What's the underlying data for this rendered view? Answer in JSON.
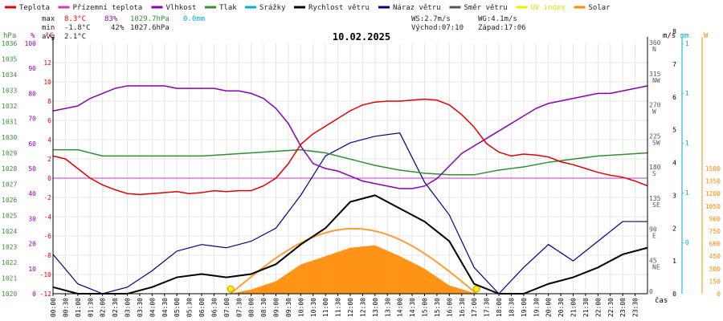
{
  "chart_data": {
    "type": "line",
    "title": "10.02.2025",
    "legend": [
      {
        "label": "Teplota",
        "color": "#e00000"
      },
      {
        "label": "Přízemní teplota",
        "color": "#cc33cc"
      },
      {
        "label": "Vlhkost",
        "color": "#8b00b4"
      },
      {
        "label": "Tlak",
        "color": "#2f8f2f"
      },
      {
        "label": "Srážky",
        "color": "#00aacc"
      },
      {
        "label": "Rychlost větru",
        "color": "#000000"
      },
      {
        "label": "Náraz větru",
        "color": "#000088"
      },
      {
        "label": "Směr větru",
        "color": "#555555"
      },
      {
        "label": "UV index",
        "color": "#eeee00"
      },
      {
        "label": "Solar",
        "color": "#ff8800"
      }
    ],
    "stats": {
      "max": {
        "label": "max",
        "temp": "8.3°C",
        "hum": "83%",
        "press": "1029.7hPa",
        "rain": "0.0mm"
      },
      "min": {
        "label": "min",
        "temp": "-1.8°C",
        "hum": "42%",
        "press": "1027.6hPa"
      },
      "avg": {
        "label": "avg",
        "temp": "2.1°C"
      }
    },
    "wind_info": {
      "ws": "WS:2.7m/s",
      "wg": "WG:4.1m/s",
      "sunrise": "Východ:07:10",
      "sunset": "Západ:17:06"
    },
    "axes": {
      "hpa": {
        "unit": "hPa",
        "range": [
          1020,
          1036
        ],
        "ticks": [
          "1036",
          "1035",
          "1034",
          "1033",
          "1032",
          "1031",
          "1030",
          "1029",
          "1028",
          "1027",
          "1026",
          "1025",
          "1024",
          "1023",
          "1022",
          "1021",
          "1020"
        ]
      },
      "pct": {
        "unit": "%",
        "range": [
          0,
          100
        ],
        "ticks": [
          "100",
          "90",
          "80",
          "70",
          "60",
          "50",
          "40",
          "30",
          "20",
          "10",
          "0"
        ]
      },
      "temp": {
        "unit": "°C",
        "range": [
          -12,
          14
        ],
        "ticks": [
          "12",
          "10",
          "8",
          "6",
          "4",
          "2",
          "0",
          "-2",
          "-4",
          "-6",
          "-8",
          "-10",
          "-12"
        ]
      },
      "dir": {
        "ticks": [
          {
            "deg": "360",
            "name": "N"
          },
          {
            "deg": "315",
            "name": "NW"
          },
          {
            "deg": "270",
            "name": "W"
          },
          {
            "deg": "225",
            "name": "SW"
          },
          {
            "deg": "180",
            "name": "S"
          },
          {
            "deg": "135",
            "name": "SE"
          },
          {
            "deg": "90",
            "name": "E"
          },
          {
            "deg": "45",
            "name": "NE"
          },
          {
            "deg": "0",
            "name": ""
          }
        ]
      },
      "ms": {
        "unit": "m/s",
        "ticks": [
          "8",
          "7",
          "6",
          "5",
          "4",
          "3",
          "2",
          "1",
          "0"
        ]
      },
      "mm": {
        "unit": "mm",
        "ticks": [
          "-1",
          "-1",
          "-1",
          "-1",
          "-0"
        ]
      },
      "w": {
        "unit": "W",
        "ticks": [
          "1500",
          "1350",
          "1200",
          "1050",
          "900",
          "750",
          "600",
          "450",
          "300",
          "150",
          "0"
        ]
      },
      "x_label": "čas",
      "x_ticks": [
        "00:00",
        "00:30",
        "01:00",
        "01:30",
        "02:00",
        "02:30",
        "03:00",
        "03:30",
        "04:00",
        "04:30",
        "05:00",
        "05:30",
        "06:00",
        "06:30",
        "07:00",
        "07:30",
        "08:00",
        "08:30",
        "09:00",
        "09:30",
        "10:00",
        "10:30",
        "11:00",
        "11:30",
        "12:00",
        "12:30",
        "13:00",
        "13:30",
        "14:00",
        "14:30",
        "15:00",
        "15:30",
        "16:00",
        "16:30",
        "17:00",
        "17:30",
        "18:00",
        "18:30",
        "19:00",
        "19:30",
        "20:00",
        "20:30",
        "21:00",
        "21:30",
        "22:00",
        "22:30",
        "23:00",
        "23:30"
      ]
    },
    "series": [
      {
        "name": "Teplota",
        "unit": "°C",
        "color": "#e00000",
        "x": [
          0,
          0.5,
          1,
          1.5,
          2,
          2.5,
          3,
          3.5,
          4,
          4.5,
          5,
          5.5,
          6,
          6.5,
          7,
          7.5,
          8,
          8.5,
          9,
          9.5,
          10,
          10.5,
          11,
          11.5,
          12,
          12.5,
          13,
          13.5,
          14,
          14.5,
          15,
          15.5,
          16,
          16.5,
          17,
          17.5,
          18,
          18.5,
          19,
          19.5,
          20,
          20.5,
          21,
          21.5,
          22,
          22.5,
          23,
          23.5,
          24
        ],
        "values": [
          2.3,
          2.0,
          1.0,
          0.0,
          -0.7,
          -1.2,
          -1.6,
          -1.7,
          -1.6,
          -1.5,
          -1.4,
          -1.6,
          -1.5,
          -1.3,
          -1.4,
          -1.3,
          -1.3,
          -0.8,
          0.0,
          1.5,
          3.5,
          4.6,
          5.4,
          6.2,
          7.0,
          7.6,
          7.9,
          8.0,
          8.0,
          8.1,
          8.2,
          8.1,
          7.6,
          6.6,
          5.3,
          3.6,
          2.7,
          2.3,
          2.5,
          2.4,
          2.2,
          1.7,
          1.4,
          1.0,
          0.6,
          0.3,
          0.1,
          -0.3,
          -0.8
        ]
      },
      {
        "name": "Vlhkost",
        "unit": "%",
        "color": "#8b00b4",
        "x": [
          0,
          0.5,
          1,
          1.5,
          2,
          2.5,
          3,
          3.5,
          4,
          4.5,
          5,
          5.5,
          6,
          6.5,
          7,
          7.5,
          8,
          8.5,
          9,
          9.5,
          10,
          10.5,
          11,
          11.5,
          12,
          12.5,
          13,
          13.5,
          14,
          14.5,
          15,
          15.5,
          16,
          16.5,
          17,
          17.5,
          18,
          18.5,
          19,
          19.5,
          20,
          20.5,
          21,
          21.5,
          22,
          22.5,
          23,
          23.5,
          24
        ],
        "values": [
          73,
          74,
          75,
          78,
          80,
          82,
          83,
          83,
          83,
          83,
          82,
          82,
          82,
          82,
          81,
          81,
          80,
          78,
          74,
          68,
          59,
          52,
          50,
          49,
          47,
          45,
          44,
          43,
          42,
          42,
          43,
          46,
          51,
          56,
          59,
          62,
          65,
          68,
          71,
          74,
          76,
          77,
          78,
          79,
          80,
          80,
          81,
          82,
          83
        ]
      },
      {
        "name": "Tlak",
        "unit": "hPa",
        "color": "#2f8f2f",
        "x": [
          0,
          1,
          2,
          3,
          4,
          5,
          6,
          7,
          8,
          9,
          10,
          11,
          12,
          13,
          14,
          15,
          16,
          17,
          18,
          19,
          20,
          21,
          22,
          23,
          24
        ],
        "values": [
          1029.2,
          1029.2,
          1028.8,
          1028.8,
          1028.8,
          1028.8,
          1028.8,
          1028.9,
          1029.0,
          1029.1,
          1029.2,
          1029.0,
          1028.6,
          1028.2,
          1027.9,
          1027.7,
          1027.6,
          1027.6,
          1027.9,
          1028.1,
          1028.4,
          1028.6,
          1028.8,
          1028.9,
          1029.0
        ]
      },
      {
        "name": "Rychlost větru",
        "unit": "m/s",
        "color": "#000000",
        "x": [
          0,
          1,
          2,
          3,
          4,
          5,
          6,
          7,
          8,
          9,
          10,
          11,
          12,
          13,
          14,
          15,
          16,
          17,
          18,
          19,
          20,
          21,
          22,
          23,
          24
        ],
        "values": [
          0.2,
          0.0,
          0.0,
          0.0,
          0.2,
          0.5,
          0.6,
          0.5,
          0.6,
          0.9,
          1.5,
          2.0,
          2.8,
          3.0,
          2.6,
          2.2,
          1.6,
          0.3,
          0.0,
          0.0,
          0.3,
          0.5,
          0.8,
          1.2,
          1.4
        ]
      },
      {
        "name": "Náraz větru",
        "unit": "m/s",
        "color": "#000088",
        "x": [
          0,
          1,
          2,
          3,
          4,
          5,
          6,
          7,
          8,
          9,
          10,
          11,
          12,
          13,
          14,
          15,
          16,
          17,
          18,
          19,
          20,
          21,
          22,
          23,
          24
        ],
        "values": [
          1.2,
          0.3,
          0.0,
          0.2,
          0.7,
          1.3,
          1.5,
          1.4,
          1.6,
          2.0,
          3.0,
          4.2,
          4.6,
          4.8,
          4.9,
          3.4,
          2.4,
          0.8,
          0.0,
          0.8,
          1.5,
          1.0,
          1.6,
          2.2,
          2.2
        ]
      },
      {
        "name": "Solar",
        "unit": "W",
        "color": "#ff8800",
        "x": [
          7.17,
          8,
          9,
          10,
          11,
          12,
          13,
          14,
          15,
          16,
          17.1
        ],
        "values": [
          0,
          50,
          150,
          350,
          450,
          550,
          580,
          450,
          300,
          100,
          0
        ]
      }
    ]
  }
}
